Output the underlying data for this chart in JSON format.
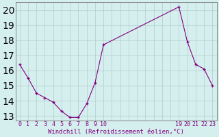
{
  "x": [
    0,
    1,
    2,
    3,
    4,
    5,
    6,
    7,
    8,
    9,
    10,
    19,
    20,
    21,
    22,
    23
  ],
  "y": [
    16.4,
    15.5,
    14.5,
    14.2,
    13.9,
    13.3,
    12.9,
    12.9,
    13.8,
    15.2,
    17.7,
    20.2,
    17.9,
    16.4,
    16.1,
    15.0
  ],
  "line_color": "#800080",
  "marker": "+",
  "marker_size": 3.5,
  "marker_lw": 1.0,
  "linewidth": 0.8,
  "xlabel": "Windchill (Refroidissement éolien,°C)",
  "xlabel_fontsize": 6.5,
  "ylim": [
    12.7,
    20.5
  ],
  "xlim": [
    -0.5,
    23.5
  ],
  "yticks": [
    13,
    14,
    15,
    16,
    17,
    18,
    19,
    20
  ],
  "xticks": [
    0,
    1,
    2,
    3,
    4,
    5,
    6,
    7,
    8,
    9,
    10,
    19,
    20,
    21,
    22,
    23
  ],
  "xtick_labels": [
    "0",
    "1",
    "2",
    "3",
    "4",
    "5",
    "6",
    "7",
    "8",
    "9",
    "10",
    "19",
    "20",
    "21",
    "22",
    "23"
  ],
  "background_color": "#d5efee",
  "grid_color": "#b0cccc",
  "tick_color": "#800080",
  "label_color": "#800080",
  "tick_fontsize": 6.0,
  "spine_color": "#808080"
}
